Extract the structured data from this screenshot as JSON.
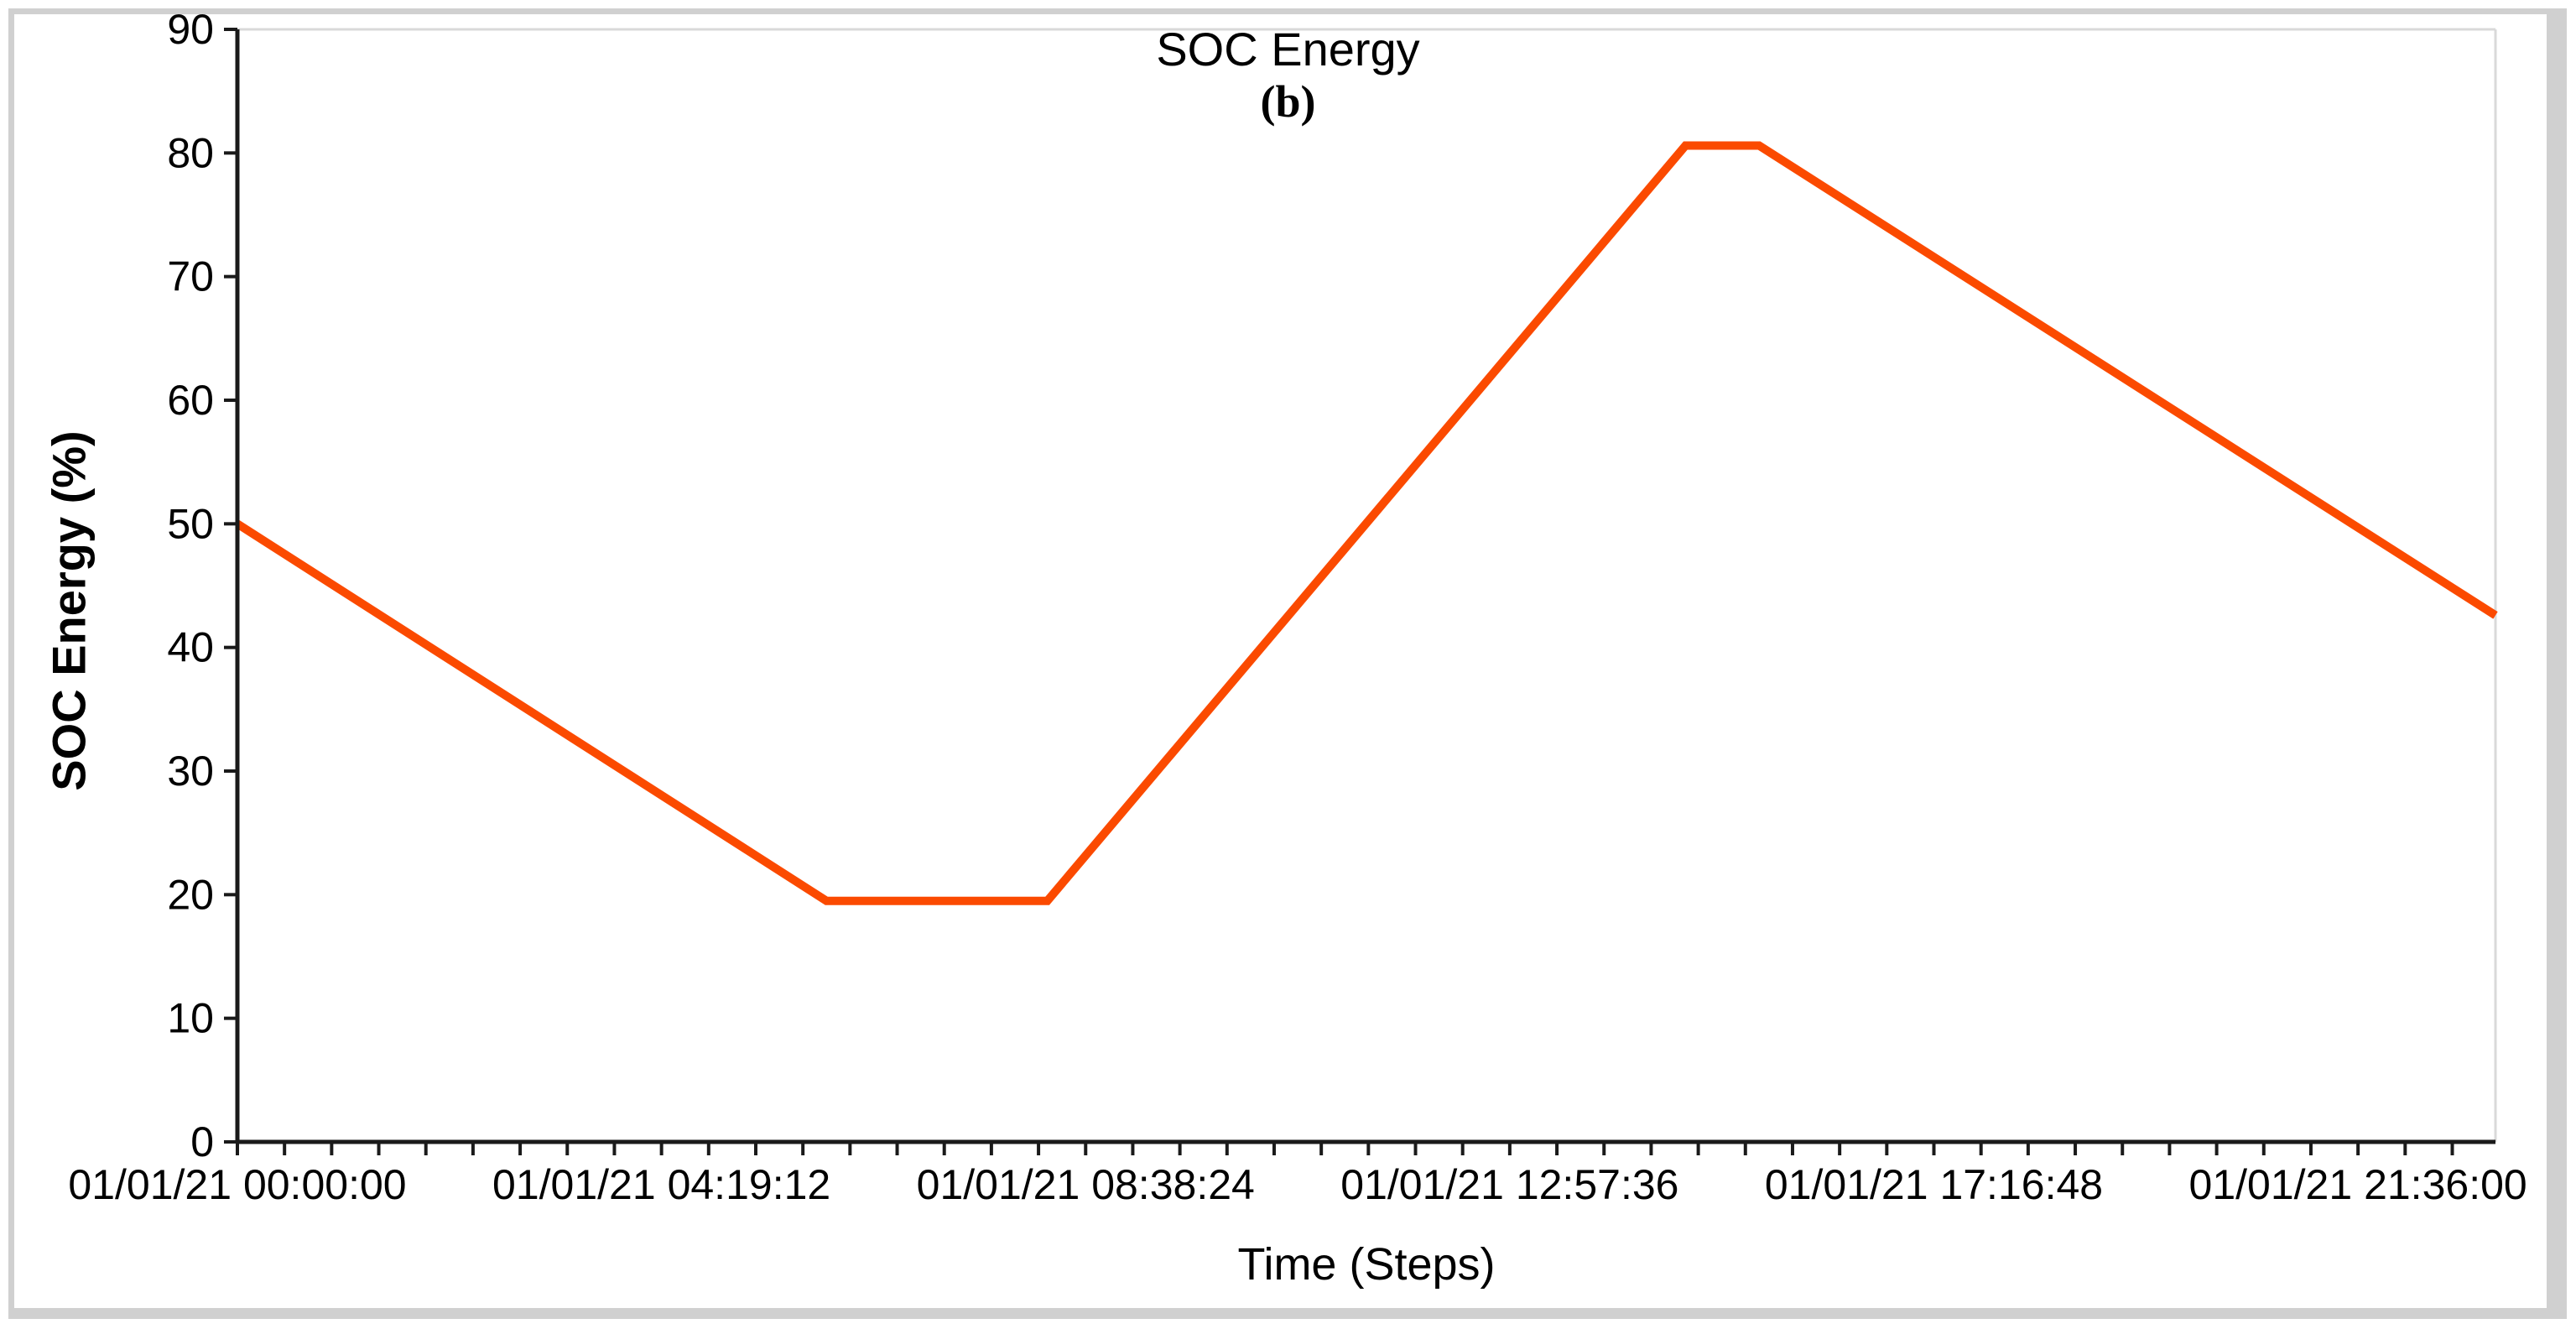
{
  "window": {
    "background": "#ffffff",
    "frame_color": "#d0d0d0"
  },
  "chart_data": {
    "type": "line",
    "title": "SOC Energy",
    "subtitle": "(b)",
    "xlabel": "Time (Steps)",
    "ylabel": "SOC Energy (%)",
    "ylim": [
      0,
      90
    ],
    "y_tick_values": [
      0,
      10,
      20,
      30,
      40,
      50,
      60,
      70,
      80,
      90
    ],
    "x_axis_hours_range": [
      0,
      23
    ],
    "x_minor_tick_interval_hours": 0.48,
    "x_major_ticks": [
      {
        "hours": 0,
        "label": "01/01/21 00:00:00"
      },
      {
        "hours": 4.32,
        "label": "01/01/21 04:19:12"
      },
      {
        "hours": 8.64,
        "label": "01/01/21 08:38:24"
      },
      {
        "hours": 12.96,
        "label": "01/01/21 12:57:36"
      },
      {
        "hours": 17.28,
        "label": "01/01/21 17:16:48"
      },
      {
        "hours": 21.6,
        "label": "01/01/21 21:36:00"
      }
    ],
    "grid": false,
    "legend": "none",
    "axis_colors": {
      "primary": "#1a1a1a",
      "secondary": "#d9d9d9"
    },
    "series": [
      {
        "name": "SOC Energy",
        "color": "#fb4a00",
        "line_width": 10,
        "points": [
          {
            "hours": 0,
            "value": 50.0
          },
          {
            "hours": 6.0,
            "value": 19.5
          },
          {
            "hours": 8.25,
            "value": 19.5
          },
          {
            "hours": 14.75,
            "value": 80.6
          },
          {
            "hours": 15.5,
            "value": 80.6
          },
          {
            "hours": 23.0,
            "value": 42.6
          }
        ]
      }
    ]
  }
}
